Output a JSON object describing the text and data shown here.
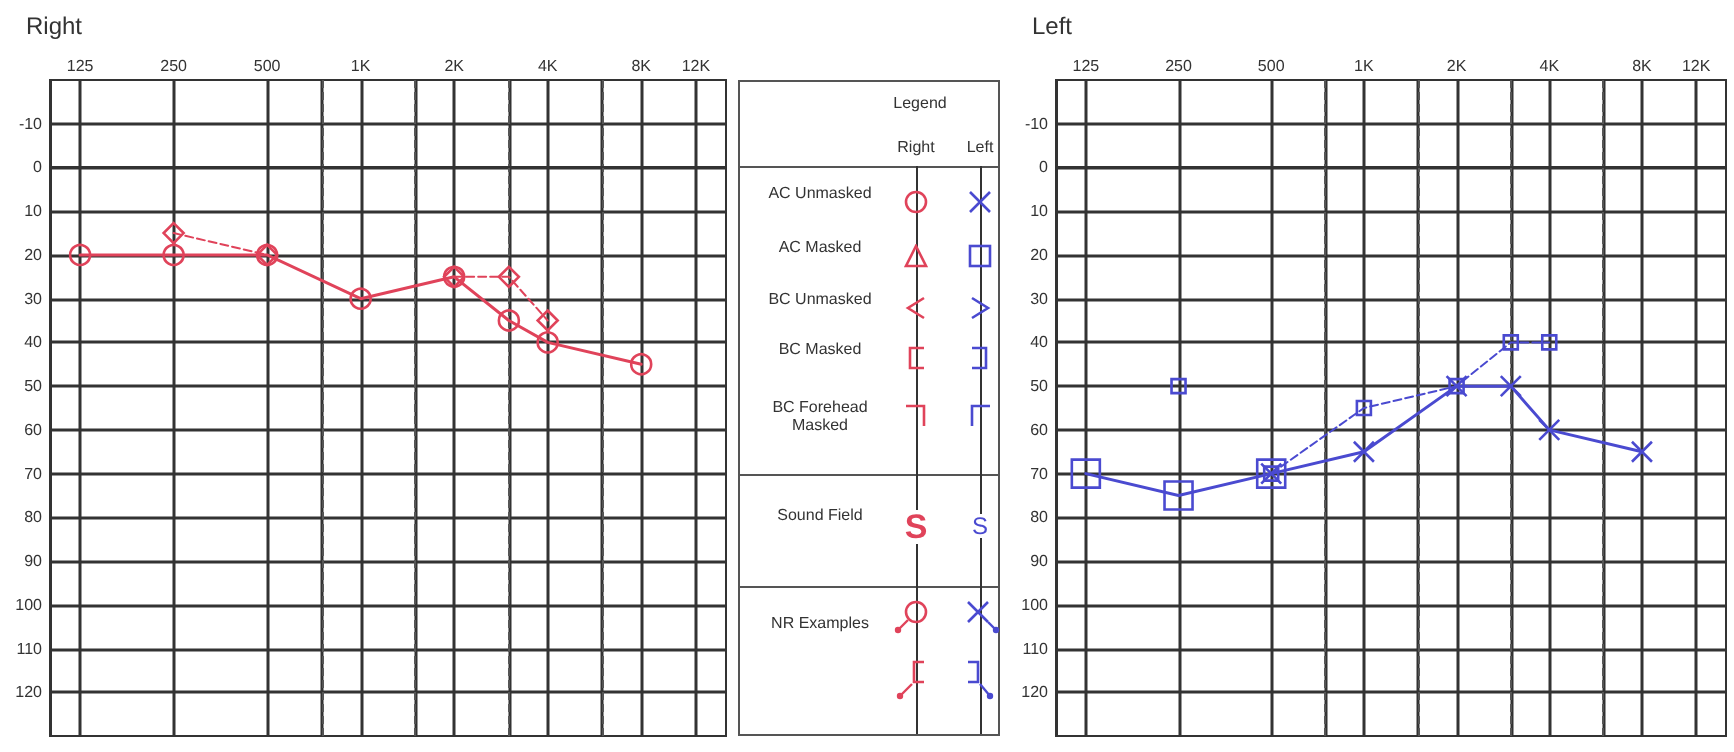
{
  "chart_data": [
    {
      "type": "line",
      "title": "Right",
      "log": "x",
      "xlim": [
        100,
        15000
      ],
      "xticks": [
        125,
        250,
        500,
        {
          "value": 750,
          "label": null
        },
        {
          "value": 1000,
          "label": "1K"
        },
        {
          "value": 1500,
          "label": null
        },
        {
          "value": 2000,
          "label": "2K"
        },
        {
          "value": 3000,
          "label": null
        },
        {
          "value": 4000,
          "label": "4K"
        },
        {
          "value": 6000,
          "label": null
        },
        {
          "value": 8000,
          "label": "8K"
        },
        {
          "value": 12000,
          "label": "12K"
        }
      ],
      "ylim": [
        130,
        -20
      ],
      "yticks": [
        -10,
        0,
        10,
        20,
        30,
        40,
        50,
        60,
        70,
        80,
        90,
        100,
        110,
        120
      ],
      "grid": true,
      "series": [
        {
          "color": "#e0435a",
          "marker": "circle",
          "line_style": "solid",
          "x": [
            125,
            250,
            500,
            1000,
            2000,
            3000,
            4000,
            8000
          ],
          "values": [
            20,
            20,
            20,
            30,
            25,
            35,
            40,
            45
          ]
        },
        {
          "color": "#e0435a",
          "marker": "diamond",
          "line_style": "dashed",
          "x": [
            250,
            500
          ],
          "values": [
            15,
            20
          ]
        },
        {
          "color": "#e0435a",
          "marker": "diamond",
          "line_style": "dashed",
          "x": [
            2000,
            3000,
            4000
          ],
          "values": [
            25,
            25,
            35
          ]
        }
      ]
    },
    {
      "type": "other",
      "title": "Legend",
      "categories": [
        "Right",
        "Left"
      ],
      "colors": [
        "#e0435a",
        "#4a4ad0"
      ],
      "annotations": [
        "AC Unmasked",
        "AC Masked",
        "BC Unmasked",
        "BC Masked",
        "BC Forehead Masked",
        "Sound Field",
        "NR Examples",
        "S",
        "S"
      ]
    },
    {
      "type": "line",
      "title": "Left",
      "log": "x",
      "xlim": [
        100,
        15000
      ],
      "xticks": [
        125,
        250,
        500,
        {
          "value": 750,
          "label": null
        },
        {
          "value": 1000,
          "label": "1K"
        },
        {
          "value": 1500,
          "label": null
        },
        {
          "value": 2000,
          "label": "2K"
        },
        {
          "value": 3000,
          "label": null
        },
        {
          "value": 4000,
          "label": "4K"
        },
        {
          "value": 6000,
          "label": null
        },
        {
          "value": 8000,
          "label": "8K"
        },
        {
          "value": 12000,
          "label": "12K"
        }
      ],
      "ylim": [
        130,
        -20
      ],
      "yticks": [
        -10,
        0,
        10,
        20,
        30,
        40,
        50,
        60,
        70,
        80,
        90,
        100,
        110,
        120
      ],
      "grid": true,
      "series": [
        {
          "color": "#4a4ad0",
          "marker": "square",
          "line_style": "solid",
          "x": [
            125,
            250,
            500
          ],
          "values": [
            70,
            75,
            70
          ]
        },
        {
          "color": "#4a4ad0",
          "marker": "cross",
          "line_style": "solid",
          "x": [
            500,
            1000,
            2000,
            3000,
            4000,
            8000
          ],
          "values": [
            70,
            65,
            50,
            50,
            60,
            65
          ]
        },
        {
          "color": "#4a4ad0",
          "marker": "square",
          "line_style": "dashed",
          "x": [
            500,
            1000,
            2000,
            3000,
            4000
          ],
          "values": [
            70,
            55,
            50,
            40,
            40
          ]
        },
        {
          "color": "#4a4ad0",
          "marker": "square",
          "line_style": "none",
          "x": [
            250
          ],
          "values": [
            50
          ]
        }
      ]
    }
  ]
}
